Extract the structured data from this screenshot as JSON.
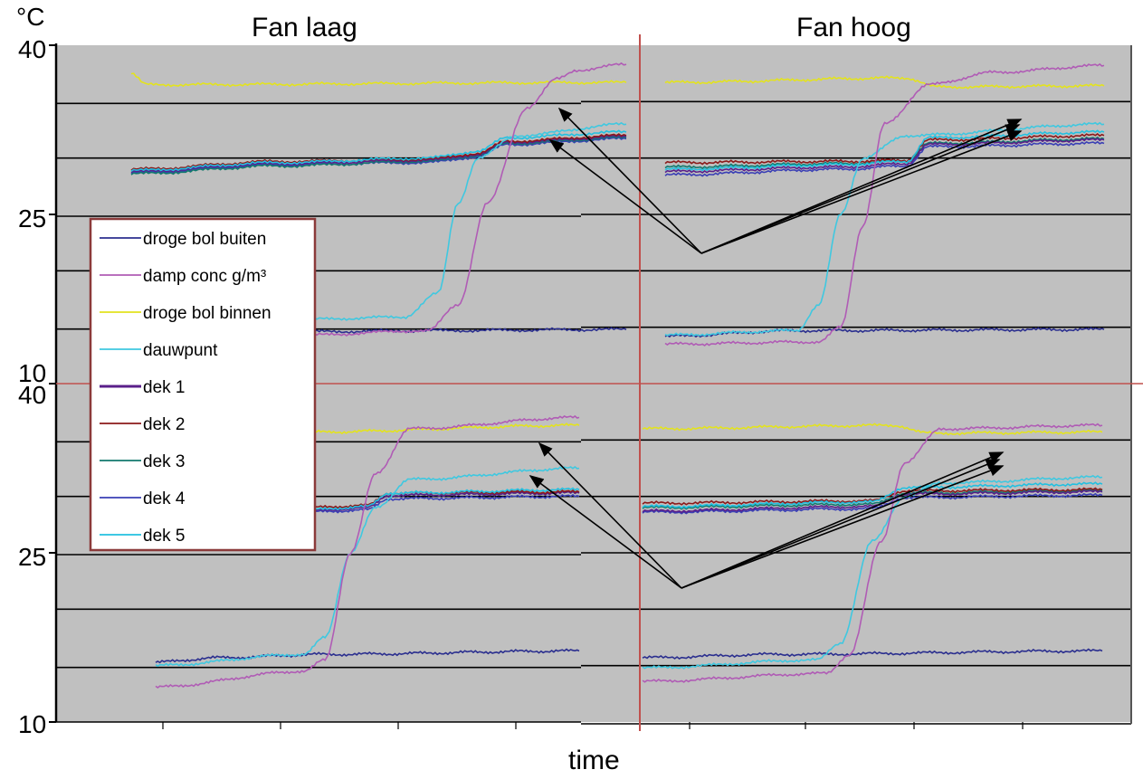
{
  "chart_data": {
    "type": "line",
    "unit_label": "°C",
    "xlabel": "time",
    "ylim": [
      10,
      40
    ],
    "yticks": [
      10,
      25,
      40
    ],
    "grid": true,
    "legend_placement": "left",
    "panel_titles": [
      "Fan laag",
      "Fan hoog"
    ],
    "legend": [
      "droge bol buiten",
      "damp conc g/m³",
      "droge bol binnen",
      "dauwpunt",
      "dek 1",
      "dek 2",
      "dek 3",
      "dek 4",
      "dek 5"
    ],
    "colors": {
      "droge bol buiten": "#2b2f8f",
      "damp conc g/m³": "#b05cb5",
      "droge bol binnen": "#e3e31e",
      "dauwpunt": "#3fc8e0",
      "dek 1": "#5a1f8a",
      "dek 2": "#8b1a1a",
      "dek 3": "#137a6e",
      "dek 4": "#3a3fb5",
      "dek 5": "#22c0e0",
      "plot_bg": "#c0c0c0",
      "divider": "#c0504d",
      "legend_border": "#8b3a3a"
    },
    "panels": [
      {
        "name": "top-left",
        "x_range": [
          0,
          100
        ],
        "series": [
          {
            "name": "droge bol buiten",
            "x": [
              35,
              60,
              100
            ],
            "y": [
              14.6,
              14.7,
              14.8
            ]
          },
          {
            "name": "damp conc g/m³",
            "x": [
              35,
              60,
              66,
              72,
              80,
              86,
              90,
              100
            ],
            "y": [
              14.3,
              14.7,
              17,
              26,
              34.5,
              37,
              37.8,
              38.3
            ]
          },
          {
            "name": "droge bol binnen",
            "x": [
              0,
              3,
              100
            ],
            "y": [
              37.5,
              36.5,
              36.7
            ]
          },
          {
            "name": "dauwpunt",
            "x": [
              35,
              55,
              62,
              66,
              70,
              78,
              100
            ],
            "y": [
              15.7,
              15.9,
              18,
              26,
              30,
              32,
              33
            ]
          },
          {
            "name": "dek 1",
            "x": [
              0,
              30,
              60,
              70,
              76,
              100
            ],
            "y": [
              28.8,
              29.5,
              29.8,
              30.3,
              31.4,
              31.9
            ]
          },
          {
            "name": "dek 2",
            "x": [
              0,
              30,
              60,
              70,
              76,
              100
            ],
            "y": [
              29.0,
              29.7,
              29.9,
              30.4,
              31.5,
              32.0
            ]
          },
          {
            "name": "dek 3",
            "x": [
              0,
              30,
              60,
              70,
              76,
              100
            ],
            "y": [
              28.6,
              29.3,
              29.7,
              30.2,
              31.3,
              31.8
            ]
          },
          {
            "name": "dek 4",
            "x": [
              0,
              30,
              60,
              70,
              76,
              100
            ],
            "y": [
              28.7,
              29.4,
              29.6,
              30.1,
              31.2,
              31.7
            ]
          },
          {
            "name": "dek 5",
            "x": [
              0,
              30,
              60,
              70,
              76,
              100
            ],
            "y": [
              28.9,
              29.6,
              30.0,
              30.6,
              31.8,
              32.3
            ]
          }
        ]
      },
      {
        "name": "top-right",
        "x_range": [
          0,
          100
        ],
        "series": [
          {
            "name": "droge bol buiten",
            "x": [
              0,
              30,
              100
            ],
            "y": [
              14.2,
              14.7,
              14.8
            ]
          },
          {
            "name": "damp conc g/m³",
            "x": [
              0,
              35,
              40,
              45,
              50,
              60,
              75,
              100
            ],
            "y": [
              13.5,
              13.7,
              15,
              24,
              33,
              36.5,
              37.6,
              38.2
            ]
          },
          {
            "name": "droge bol binnen",
            "x": [
              0,
              55,
              62,
              100
            ],
            "y": [
              36.7,
              37.1,
              36.3,
              36.4
            ]
          },
          {
            "name": "dauwpunt",
            "x": [
              0,
              30,
              35,
              40,
              45,
              55,
              100
            ],
            "y": [
              14.3,
              14.7,
              17,
              25,
              30,
              32,
              33
            ]
          },
          {
            "name": "dek 1",
            "x": [
              0,
              40,
              55,
              60,
              100
            ],
            "y": [
              28.8,
              29.2,
              29.5,
              31.2,
              31.6
            ]
          },
          {
            "name": "dek 2",
            "x": [
              0,
              40,
              55,
              60,
              100
            ],
            "y": [
              29.6,
              29.7,
              29.8,
              31.6,
              32.0
            ]
          },
          {
            "name": "dek 3",
            "x": [
              0,
              40,
              55,
              60,
              100
            ],
            "y": [
              29.2,
              29.5,
              29.7,
              31.3,
              31.7
            ]
          },
          {
            "name": "dek 4",
            "x": [
              0,
              40,
              55,
              60,
              100
            ],
            "y": [
              28.5,
              29.0,
              29.3,
              31.0,
              31.3
            ]
          },
          {
            "name": "dek 5",
            "x": [
              0,
              40,
              55,
              60,
              100
            ],
            "y": [
              29.0,
              29.4,
              29.7,
              31.8,
              32.3
            ]
          }
        ]
      },
      {
        "name": "bottom-left",
        "x_range": [
          0,
          100
        ],
        "series": [
          {
            "name": "droge bol buiten",
            "x": [
              0,
              15,
              40,
              100
            ],
            "y": [
              15.3,
              15.7,
              16.0,
              16.3
            ]
          },
          {
            "name": "damp conc g/m³",
            "x": [
              0,
              35,
              40,
              46,
              52,
              60,
              100
            ],
            "y": [
              13.1,
              14.5,
              15.5,
              25,
              32,
              36,
              37
            ]
          },
          {
            "name": "droge bol binnen",
            "x": [
              35,
              100
            ],
            "y": [
              35.7,
              36.3
            ]
          },
          {
            "name": "dauwpunt",
            "x": [
              0,
              35,
              40,
              46,
              52,
              60,
              100
            ],
            "y": [
              15.0,
              16.0,
              17.5,
              25,
              29,
              31.5,
              32.5
            ]
          },
          {
            "name": "dek 1",
            "x": [
              35,
              50,
              55,
              100
            ],
            "y": [
              28.7,
              29.0,
              30.1,
              30.3
            ]
          },
          {
            "name": "dek 2",
            "x": [
              35,
              50,
              55,
              100
            ],
            "y": [
              29.0,
              29.2,
              30.3,
              30.4
            ]
          },
          {
            "name": "dek 3",
            "x": [
              35,
              50,
              55,
              100
            ],
            "y": [
              28.8,
              29.0,
              30.1,
              30.3
            ]
          },
          {
            "name": "dek 4",
            "x": [
              35,
              50,
              55,
              100
            ],
            "y": [
              28.6,
              28.8,
              29.8,
              30.0
            ]
          },
          {
            "name": "dek 5",
            "x": [
              35,
              50,
              55,
              100
            ],
            "y": [
              28.8,
              29.1,
              30.3,
              30.6
            ]
          }
        ]
      },
      {
        "name": "bottom-right",
        "x_range": [
          0,
          100
        ],
        "series": [
          {
            "name": "droge bol buiten",
            "x": [
              0,
              30,
              100
            ],
            "y": [
              15.7,
              16.0,
              16.3
            ]
          },
          {
            "name": "damp conc g/m³",
            "x": [
              0,
              40,
              45,
              52,
              57,
              65,
              100
            ],
            "y": [
              13.6,
              14.3,
              16,
              26,
              33,
              36,
              36.3
            ]
          },
          {
            "name": "droge bol binnen",
            "x": [
              0,
              55,
              62,
              100
            ],
            "y": [
              36.0,
              36.3,
              35.6,
              35.7
            ]
          },
          {
            "name": "dauwpunt",
            "x": [
              0,
              38,
              43,
              50,
              57,
              65,
              100
            ],
            "y": [
              14.8,
              15.5,
              17,
              26,
              30,
              31.2,
              31.7
            ]
          },
          {
            "name": "dek 1",
            "x": [
              0,
              50,
              57,
              100
            ],
            "y": [
              28.7,
              29.1,
              30.2,
              30.4
            ]
          },
          {
            "name": "dek 2",
            "x": [
              0,
              50,
              57,
              100
            ],
            "y": [
              29.4,
              29.6,
              30.5,
              30.6
            ]
          },
          {
            "name": "dek 3",
            "x": [
              0,
              50,
              57,
              100
            ],
            "y": [
              29.0,
              29.3,
              30.3,
              30.5
            ]
          },
          {
            "name": "dek 4",
            "x": [
              0,
              50,
              57,
              100
            ],
            "y": [
              28.6,
              28.9,
              29.9,
              30.1
            ]
          },
          {
            "name": "dek 5",
            "x": [
              0,
              50,
              57,
              100
            ],
            "y": [
              29.1,
              29.5,
              30.8,
              31.1
            ]
          }
        ]
      }
    ]
  }
}
